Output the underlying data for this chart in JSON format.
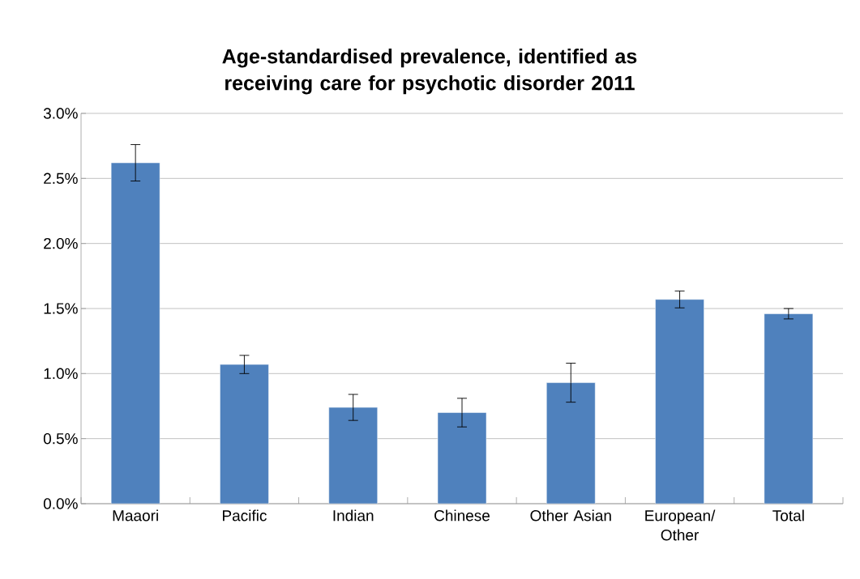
{
  "chart_data": {
    "type": "bar",
    "title": "Age-standardised prevalence, identified as receiving care for psychotic disorder 2011",
    "categories": [
      "Maaori",
      "Pacific",
      "Indian",
      "Chinese",
      "Other Asian",
      "European/ Other",
      "Total"
    ],
    "values": [
      2.62,
      1.07,
      0.74,
      0.7,
      0.93,
      1.57,
      1.46
    ],
    "errors": [
      0.14,
      0.07,
      0.1,
      0.11,
      0.15,
      0.065,
      0.04
    ],
    "color": "#4f81bd",
    "ylim": [
      0,
      3
    ],
    "yticks": [
      {
        "value": 0,
        "label": "0.0%"
      },
      {
        "value": 0.5,
        "label": "0.5%"
      },
      {
        "value": 1,
        "label": "1.0%"
      },
      {
        "value": 1.5,
        "label": "1.5%"
      },
      {
        "value": 2,
        "label": "2.0%"
      },
      {
        "value": 2.5,
        "label": "2.5%"
      },
      {
        "value": 3,
        "label": "3.0%"
      }
    ],
    "grid": "y"
  }
}
